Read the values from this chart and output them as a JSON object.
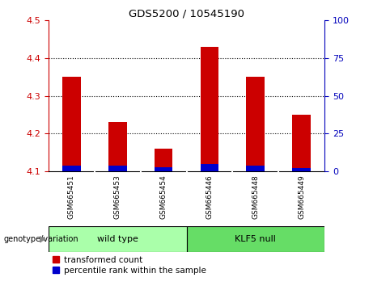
{
  "title": "GDS5200 / 10545190",
  "samples": [
    "GSM665451",
    "GSM665453",
    "GSM665454",
    "GSM665446",
    "GSM665448",
    "GSM665449"
  ],
  "red_values": [
    4.35,
    4.23,
    4.16,
    4.43,
    4.35,
    4.25
  ],
  "blue_values": [
    0.015,
    0.015,
    0.012,
    0.02,
    0.015,
    0.01
  ],
  "ylim_left": [
    4.1,
    4.5
  ],
  "ylim_right": [
    0,
    100
  ],
  "yticks_left": [
    4.1,
    4.2,
    4.3,
    4.4,
    4.5
  ],
  "yticks_right": [
    0,
    25,
    50,
    75,
    100
  ],
  "bar_bottom": 4.1,
  "group_label": "genotype/variation",
  "legend_red": "transformed count",
  "legend_blue": "percentile rank within the sample",
  "red_color": "#CC0000",
  "blue_color": "#0000CC",
  "bar_width": 0.4,
  "bg_group_wildtype": "#AAFFAA",
  "bg_group_klf5": "#66DD66",
  "left_tick_color": "#CC0000",
  "right_tick_color": "#0000BB",
  "gridline_color": "#000000",
  "gridline_ticks": [
    4.2,
    4.3,
    4.4
  ]
}
